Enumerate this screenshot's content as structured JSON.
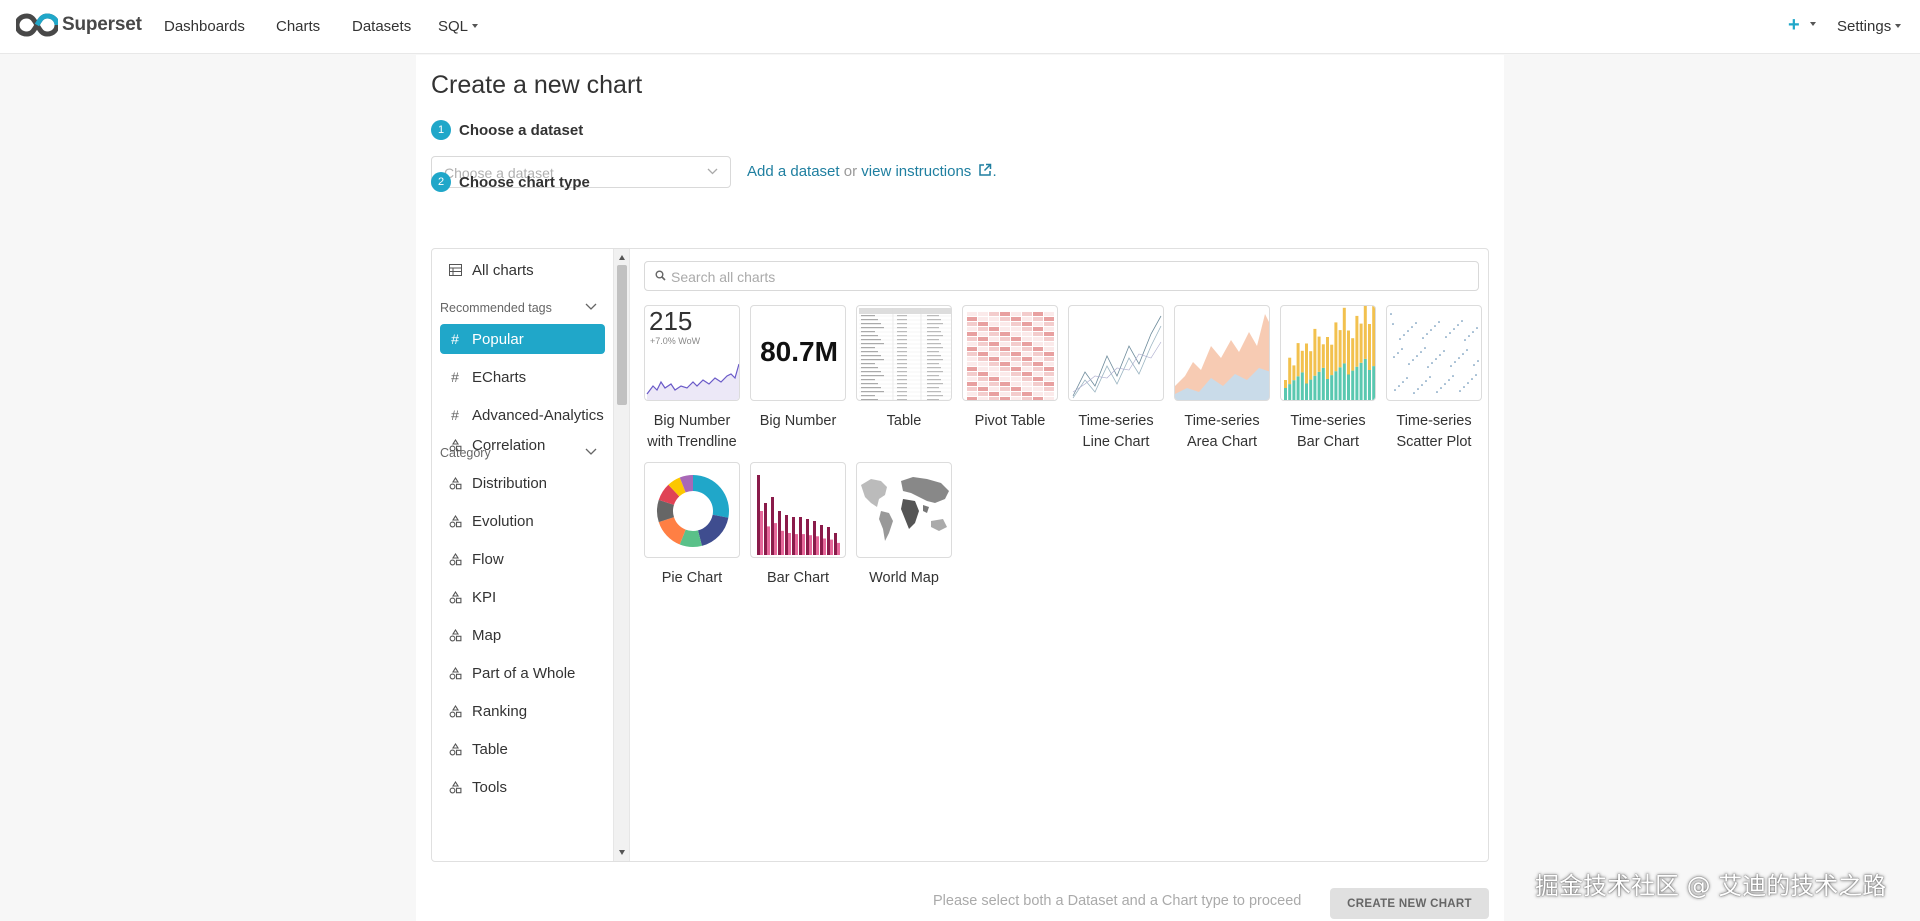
{
  "nav": {
    "brand": "Superset",
    "items": [
      "Dashboards",
      "Charts",
      "Datasets",
      "SQL"
    ],
    "settings": "Settings"
  },
  "page": {
    "title": "Create a new chart",
    "step1_num": "1",
    "step1_label": "Choose a dataset",
    "dataset_placeholder": "Choose a dataset",
    "add_dataset": "Add a dataset",
    "or": "or",
    "view_instructions": "view instructions",
    "period": ".",
    "step2_num": "2",
    "step2_label": "Choose chart type"
  },
  "sidebar": {
    "all_charts": "All charts",
    "recommended_header": "Recommended tags",
    "tags": [
      "Popular",
      "ECharts",
      "Advanced-Analytics"
    ],
    "category_header": "Category",
    "categories": [
      "Correlation",
      "Distribution",
      "Evolution",
      "Flow",
      "KPI",
      "Map",
      "Part of a Whole",
      "Ranking",
      "Table",
      "Tools"
    ]
  },
  "search": {
    "placeholder": "Search all charts"
  },
  "charts": {
    "big_number_trend": {
      "label": "Big Number with Trendline",
      "value": "215",
      "sub": "+7.0% WoW"
    },
    "big_number": {
      "label": "Big Number",
      "value": "80.7M"
    },
    "table": {
      "label": "Table"
    },
    "pivot": {
      "label": "Pivot Table"
    },
    "ts_line": {
      "label": "Time-series Line Chart"
    },
    "ts_area": {
      "label": "Time-series Area Chart"
    },
    "ts_bar": {
      "label": "Time-series Bar Chart"
    },
    "ts_scatter": {
      "label": "Time-series Scatter Plot"
    },
    "pie": {
      "label": "Pie Chart"
    },
    "bar": {
      "label": "Bar Chart"
    },
    "world_map": {
      "label": "World Map"
    }
  },
  "footer": {
    "hint": "Please select both a Dataset and a Chart type to proceed",
    "create_button": "CREATE NEW CHART"
  },
  "watermark": "掘金技术社区 @ 艾迪的技术之路",
  "colors": {
    "accent": "#20a7c9",
    "link": "#1f7fa0"
  }
}
